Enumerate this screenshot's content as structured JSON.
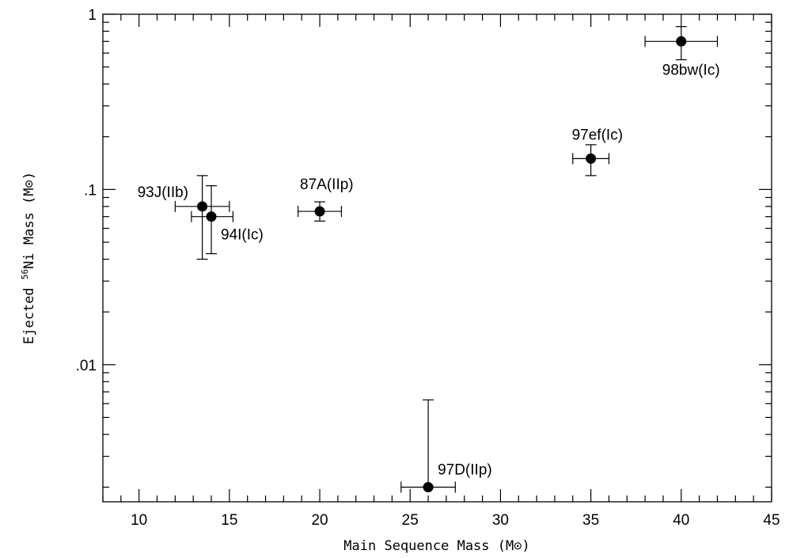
{
  "chart_data": {
    "type": "scatter",
    "xlabel": "Main Sequence Mass (M⊙)",
    "ylabel_prefix": "Ejected ",
    "ylabel_sup": "56",
    "ylabel_suffix": "Ni Mass (M⊙)",
    "xlim": [
      8,
      45
    ],
    "ylim": [
      0.00165,
      1
    ],
    "yscale": "log",
    "x_ticks": [
      10,
      15,
      20,
      25,
      30,
      35,
      40,
      45
    ],
    "x_tick_labels": [
      "10",
      "15",
      "20",
      "25",
      "30",
      "35",
      "40",
      "45"
    ],
    "y_ticks": [
      0.01,
      0.1,
      1
    ],
    "y_tick_labels": [
      ".01",
      ".1",
      "1"
    ],
    "grid": false,
    "points": [
      {
        "label": "93J(IIb)",
        "x": 13.5,
        "y": 0.08,
        "xerr": [
          12.0,
          15.0
        ],
        "yerr": [
          0.04,
          0.12
        ]
      },
      {
        "label": "94I(Ic)",
        "x": 14.0,
        "y": 0.07,
        "xerr": [
          12.9,
          15.2
        ],
        "yerr": [
          0.043,
          0.105
        ]
      },
      {
        "label": "87A(IIp)",
        "x": 20.0,
        "y": 0.075,
        "xerr": [
          18.8,
          21.2
        ],
        "yerr": [
          0.066,
          0.085
        ]
      },
      {
        "label": "97D(IIp)",
        "x": 26.0,
        "y": 0.002,
        "xerr": [
          24.5,
          27.5
        ],
        "yerr": [
          0.002,
          0.0063
        ]
      },
      {
        "label": "97ef(Ic)",
        "x": 35.0,
        "y": 0.15,
        "xerr": [
          34.0,
          36.0
        ],
        "yerr": [
          0.12,
          0.18
        ]
      },
      {
        "label": "98bw(Ic)",
        "x": 40.0,
        "y": 0.7,
        "xerr": [
          38.0,
          42.0
        ],
        "yerr": [
          0.55,
          0.85
        ]
      }
    ]
  }
}
